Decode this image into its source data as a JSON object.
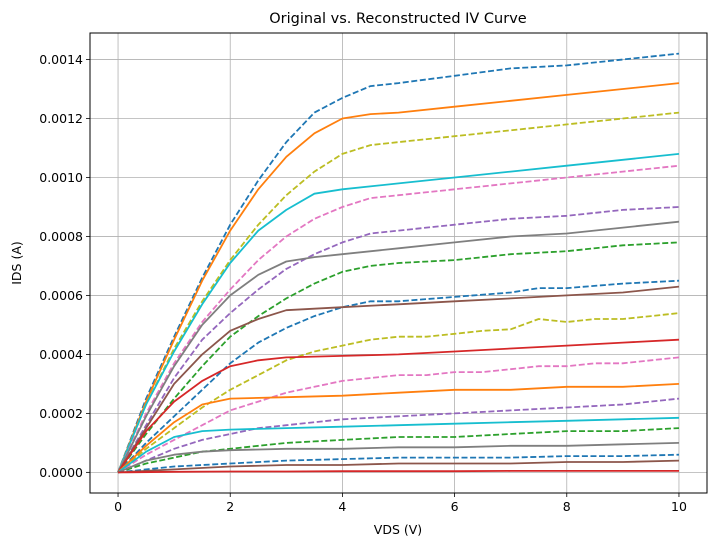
{
  "chart_data": {
    "type": "line",
    "title": "Original vs. Reconstructed IV Curve",
    "xlabel": "VDS (V)",
    "ylabel": "IDS (A)",
    "xlim": [
      -0.5,
      10.5
    ],
    "ylim": [
      -7e-05,
      0.00149
    ],
    "xticks": [
      0,
      2,
      4,
      6,
      8,
      10
    ],
    "xtick_labels": [
      "0",
      "2",
      "4",
      "6",
      "8",
      "10"
    ],
    "yticks": [
      0,
      0.0002,
      0.0004,
      0.0006,
      0.0008,
      0.001,
      0.0012,
      0.0014
    ],
    "ytick_labels": [
      "0.0000",
      "0.0002",
      "0.0004",
      "0.0006",
      "0.0008",
      "0.0010",
      "0.0012",
      "0.0014"
    ],
    "grid": true,
    "legend": "none",
    "series": [
      {
        "color": "#1f77b4",
        "style": "dashed",
        "x": [
          0,
          0.5,
          1,
          1.5,
          2,
          2.5,
          3,
          3.5,
          4,
          4.5,
          5,
          6,
          7,
          8,
          9,
          10
        ],
        "y": [
          0,
          0.00025,
          0.00046,
          0.00066,
          0.00084,
          0.00099,
          0.00112,
          0.00122,
          0.00127,
          0.00131,
          0.00132,
          0.001345,
          0.00137,
          0.00138,
          0.0014,
          0.00142
        ]
      },
      {
        "color": "#ff7f0e",
        "style": "solid",
        "x": [
          0,
          0.5,
          1,
          1.5,
          2,
          2.5,
          3,
          3.5,
          4,
          4.5,
          5,
          6,
          7,
          8,
          9,
          10
        ],
        "y": [
          0,
          0.00024,
          0.00045,
          0.00065,
          0.00082,
          0.00096,
          0.00107,
          0.00115,
          0.0012,
          0.001215,
          0.00122,
          0.00124,
          0.00126,
          0.00128,
          0.0013,
          0.00132
        ]
      },
      {
        "color": "#bcbd22",
        "style": "dashed",
        "x": [
          0,
          0.5,
          1,
          1.5,
          2,
          2.5,
          3,
          3.5,
          4,
          4.5,
          5,
          6,
          7,
          8,
          9,
          10
        ],
        "y": [
          0,
          0.00023,
          0.00042,
          0.00058,
          0.00072,
          0.00084,
          0.00094,
          0.00102,
          0.00108,
          0.00111,
          0.00112,
          0.00114,
          0.00116,
          0.00118,
          0.0012,
          0.00122
        ]
      },
      {
        "color": "#17becf",
        "style": "solid",
        "x": [
          0,
          0.5,
          1,
          1.5,
          2,
          2.5,
          3,
          3.5,
          4,
          5,
          6,
          7,
          8,
          9,
          10
        ],
        "y": [
          0,
          0.00023,
          0.00041,
          0.00057,
          0.00071,
          0.00082,
          0.00089,
          0.000945,
          0.00096,
          0.00098,
          0.001,
          0.00102,
          0.00104,
          0.00106,
          0.00108
        ]
      },
      {
        "color": "#e377c2",
        "style": "dashed",
        "x": [
          0,
          0.5,
          1,
          1.5,
          2,
          2.5,
          3,
          3.5,
          4,
          4.5,
          5,
          6,
          7,
          8,
          9,
          10
        ],
        "y": [
          0,
          0.0002,
          0.00037,
          0.00051,
          0.00062,
          0.00072,
          0.0008,
          0.00086,
          0.0009,
          0.00093,
          0.00094,
          0.00096,
          0.00098,
          0.001,
          0.00102,
          0.00104
        ]
      },
      {
        "color": "#9467bd",
        "style": "dashed",
        "x": [
          0,
          0.5,
          1,
          1.5,
          2,
          2.5,
          3,
          3.5,
          4,
          4.5,
          5,
          6,
          7,
          8,
          9,
          10
        ],
        "y": [
          0,
          0.00016,
          0.00032,
          0.00045,
          0.00054,
          0.00062,
          0.00069,
          0.00074,
          0.00078,
          0.00081,
          0.00082,
          0.00084,
          0.00086,
          0.00087,
          0.00089,
          0.0009
        ]
      },
      {
        "color": "#7f7f7f",
        "style": "solid",
        "x": [
          0,
          0.5,
          1,
          1.5,
          2,
          2.5,
          3,
          3.5,
          4,
          5,
          6,
          7,
          8,
          9,
          10
        ],
        "y": [
          0,
          0.00019,
          0.00036,
          0.0005,
          0.0006,
          0.00067,
          0.000715,
          0.00073,
          0.00074,
          0.00076,
          0.00078,
          0.0008,
          0.00081,
          0.00083,
          0.00085
        ]
      },
      {
        "color": "#2ca02c",
        "style": "dashed",
        "x": [
          0,
          0.5,
          1,
          1.5,
          2,
          2.5,
          3,
          3.5,
          4,
          4.5,
          5,
          6,
          7,
          8,
          9,
          10
        ],
        "y": [
          0,
          0.00013,
          0.00025,
          0.00036,
          0.00046,
          0.00053,
          0.00059,
          0.00064,
          0.00068,
          0.0007,
          0.00071,
          0.00072,
          0.00074,
          0.00075,
          0.00077,
          0.00078
        ]
      },
      {
        "color": "#1f77b4",
        "style": "dashed",
        "x": [
          0,
          0.5,
          1,
          1.5,
          2,
          2.5,
          3,
          3.5,
          4,
          4.5,
          5,
          6,
          7,
          7.5,
          8,
          9,
          10
        ],
        "y": [
          0,
          0.0001,
          0.00019,
          0.00028,
          0.00037,
          0.00044,
          0.00049,
          0.00053,
          0.00056,
          0.00058,
          0.00058,
          0.000595,
          0.00061,
          0.000625,
          0.000625,
          0.00064,
          0.00065
        ]
      },
      {
        "color": "#8c564b",
        "style": "solid",
        "x": [
          0,
          0.5,
          1,
          1.5,
          2,
          2.5,
          3,
          4,
          5,
          6,
          7,
          8,
          9,
          10
        ],
        "y": [
          0,
          0.00015,
          0.0003,
          0.0004,
          0.00048,
          0.00052,
          0.00055,
          0.00056,
          0.00057,
          0.00058,
          0.00059,
          0.0006,
          0.00061,
          0.00063
        ]
      },
      {
        "color": "#bcbd22",
        "style": "dashed",
        "x": [
          0,
          0.5,
          1,
          1.5,
          2,
          2.5,
          3,
          3.5,
          4,
          4.5,
          5,
          5.5,
          6,
          6.5,
          7,
          7.5,
          8,
          8.5,
          9,
          9.5,
          10
        ],
        "y": [
          0,
          8e-05,
          0.00015,
          0.00022,
          0.00028,
          0.00033,
          0.00038,
          0.00041,
          0.00043,
          0.00045,
          0.00046,
          0.00046,
          0.00047,
          0.00048,
          0.000485,
          0.00052,
          0.00051,
          0.00052,
          0.00052,
          0.00053,
          0.00054
        ]
      },
      {
        "color": "#d62728",
        "style": "solid",
        "x": [
          0,
          0.5,
          1,
          1.5,
          2,
          2.5,
          3,
          4,
          5,
          6,
          7,
          8,
          9,
          10
        ],
        "y": [
          0,
          0.00014,
          0.00024,
          0.00031,
          0.00036,
          0.00038,
          0.00039,
          0.000395,
          0.0004,
          0.00041,
          0.00042,
          0.00043,
          0.00044,
          0.00045
        ]
      },
      {
        "color": "#e377c2",
        "style": "dashed",
        "x": [
          0,
          0.5,
          1,
          1.5,
          2,
          2.5,
          3,
          3.5,
          4,
          4.5,
          5,
          5.5,
          6,
          6.5,
          7,
          7.5,
          8,
          8.5,
          9,
          9.5,
          10
        ],
        "y": [
          0,
          6e-05,
          0.00011,
          0.00016,
          0.00021,
          0.00024,
          0.00027,
          0.00029,
          0.00031,
          0.00032,
          0.00033,
          0.00033,
          0.00034,
          0.00034,
          0.00035,
          0.00036,
          0.00036,
          0.00037,
          0.00037,
          0.00038,
          0.00039
        ]
      },
      {
        "color": "#ff7f0e",
        "style": "solid",
        "x": [
          0,
          0.5,
          1,
          1.5,
          2,
          3,
          4,
          5,
          6,
          7,
          8,
          9,
          10
        ],
        "y": [
          0,
          9e-05,
          0.00017,
          0.00023,
          0.00025,
          0.000255,
          0.00026,
          0.00027,
          0.00028,
          0.00028,
          0.00029,
          0.00029,
          0.0003
        ]
      },
      {
        "color": "#9467bd",
        "style": "dashed",
        "x": [
          0,
          0.5,
          1,
          1.5,
          2,
          2.5,
          3,
          3.5,
          4,
          5,
          6,
          7,
          8,
          9,
          10
        ],
        "y": [
          0,
          4e-05,
          8e-05,
          0.00011,
          0.00013,
          0.00015,
          0.00016,
          0.00017,
          0.00018,
          0.00019,
          0.0002,
          0.00021,
          0.00022,
          0.00023,
          0.00025
        ]
      },
      {
        "color": "#17becf",
        "style": "solid",
        "x": [
          0,
          0.5,
          1,
          1.5,
          2,
          3,
          4,
          5,
          6,
          7,
          8,
          9,
          10
        ],
        "y": [
          0,
          7e-05,
          0.00012,
          0.00014,
          0.000145,
          0.00015,
          0.000155,
          0.00016,
          0.000165,
          0.00017,
          0.000175,
          0.00018,
          0.000185
        ]
      },
      {
        "color": "#2ca02c",
        "style": "dashed",
        "x": [
          0,
          0.5,
          1,
          1.5,
          2,
          2.5,
          3,
          3.5,
          4,
          5,
          6,
          7,
          8,
          9,
          10
        ],
        "y": [
          0,
          3e-05,
          5e-05,
          7e-05,
          8e-05,
          9e-05,
          0.0001,
          0.000105,
          0.00011,
          0.00012,
          0.00012,
          0.00013,
          0.00014,
          0.00014,
          0.00015
        ]
      },
      {
        "color": "#7f7f7f",
        "style": "solid",
        "x": [
          0,
          0.5,
          1,
          1.5,
          2,
          3,
          4,
          5,
          6,
          7,
          8,
          9,
          10
        ],
        "y": [
          0,
          4e-05,
          6e-05,
          7e-05,
          7.5e-05,
          8e-05,
          8e-05,
          8.5e-05,
          8.5e-05,
          9e-05,
          9e-05,
          9.5e-05,
          0.0001
        ]
      },
      {
        "color": "#1f77b4",
        "style": "dashed",
        "x": [
          0,
          1,
          2,
          3,
          4,
          5,
          6,
          7,
          8,
          9,
          10
        ],
        "y": [
          0,
          2e-05,
          3e-05,
          4e-05,
          4.5e-05,
          5e-05,
          5e-05,
          5e-05,
          5.5e-05,
          5.5e-05,
          6e-05
        ]
      },
      {
        "color": "#8c564b",
        "style": "solid",
        "x": [
          0,
          1,
          2,
          3,
          4,
          5,
          6,
          7,
          8,
          9,
          10
        ],
        "y": [
          0,
          1e-05,
          2e-05,
          2.5e-05,
          2.5e-05,
          3e-05,
          3e-05,
          3e-05,
          3.5e-05,
          3.5e-05,
          4e-05
        ]
      },
      {
        "color": "#d62728",
        "style": "solid",
        "x": [
          0,
          1,
          2,
          3,
          4,
          5,
          6,
          7,
          8,
          9,
          10
        ],
        "y": [
          0,
          2e-06,
          3e-06,
          3e-06,
          4e-06,
          4e-06,
          4e-06,
          5e-06,
          5e-06,
          5e-06,
          5e-06
        ]
      }
    ]
  }
}
